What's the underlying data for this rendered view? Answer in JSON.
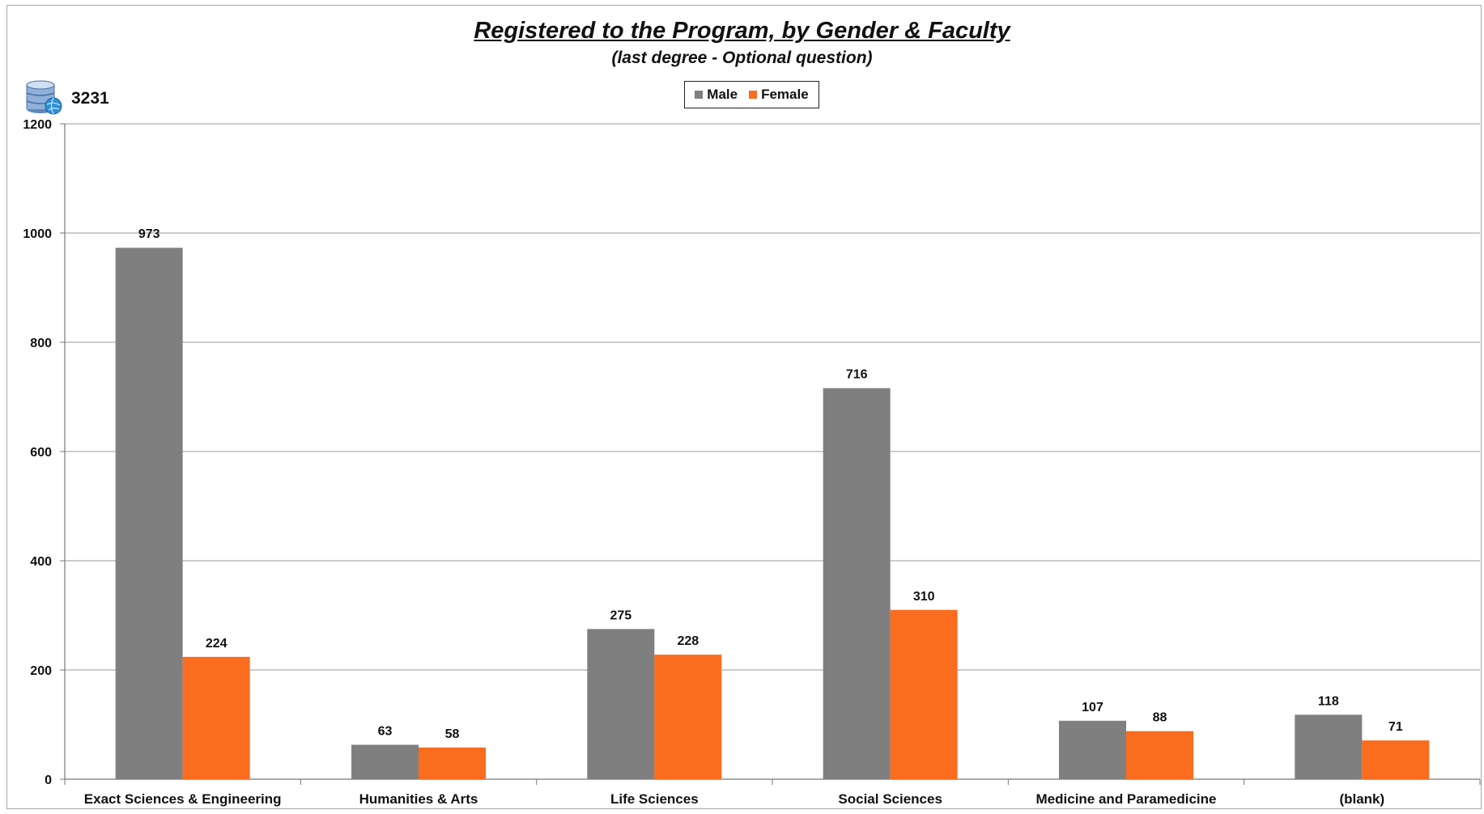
{
  "chart_data": {
    "type": "bar",
    "title": "Registered to the Program, by Gender & Faculty",
    "subtitle": "(last degree  - Optional question)",
    "total_count": "3231",
    "categories": [
      "Exact Sciences & Engineering",
      "Humanities & Arts",
      "Life Sciences",
      "Social Sciences",
      "Medicine and Paramedicine",
      "(blank)"
    ],
    "series": [
      {
        "name": "Male",
        "color": "#7f7f7f",
        "values": [
          973,
          63,
          275,
          716,
          107,
          118
        ]
      },
      {
        "name": "Female",
        "color": "#fa6c1e",
        "values": [
          224,
          58,
          228,
          310,
          88,
          71
        ]
      }
    ],
    "ylim": [
      0,
      1200
    ],
    "yticks": [
      0,
      200,
      400,
      600,
      800,
      1000,
      1200
    ],
    "grid": true,
    "legend_position": "top-center",
    "xlabel": "",
    "ylabel": ""
  }
}
